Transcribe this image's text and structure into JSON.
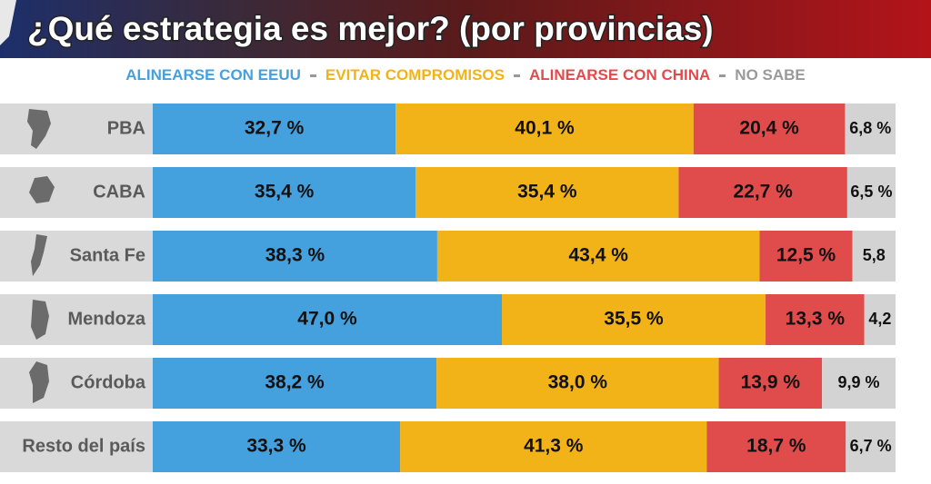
{
  "chart_data": {
    "type": "bar",
    "orientation": "horizontal",
    "stacked": true,
    "title": "¿Qué estrategia es mejor? (por provincias)",
    "categories": [
      "PBA",
      "CABA",
      "Santa Fe",
      "Mendoza",
      "Córdoba",
      "Resto del país"
    ],
    "xlim": [
      0,
      100
    ],
    "series": [
      {
        "name": "ALINEARSE CON EEUU",
        "color": "#45a0de",
        "values": [
          32.7,
          35.4,
          38.3,
          47.0,
          38.2,
          33.3
        ],
        "value_labels": [
          "32,7 %",
          "35,4 %",
          "38,3 %",
          "47,0 %",
          "38,2 %",
          "33,3 %"
        ]
      },
      {
        "name": "EVITAR COMPROMISOS",
        "color": "#f2b318",
        "values": [
          40.1,
          35.4,
          43.4,
          35.5,
          38.0,
          41.3
        ],
        "value_labels": [
          "40,1 %",
          "35,4 %",
          "43,4 %",
          "35,5 %",
          "38,0 %",
          "41,3 %"
        ]
      },
      {
        "name": "ALINEARSE CON CHINA",
        "color": "#e04c4c",
        "values": [
          20.4,
          22.7,
          12.5,
          13.3,
          13.9,
          18.7
        ],
        "value_labels": [
          "20,4 %",
          "22,7 %",
          "12,5 %",
          "13,3 %",
          "13,9 %",
          "18,7 %"
        ]
      },
      {
        "name": "NO SABE",
        "color": "#d3d3d3",
        "values": [
          6.8,
          6.5,
          5.8,
          4.2,
          9.9,
          6.7
        ],
        "value_labels": [
          "6,8 %",
          "6,5 %",
          "5,8",
          "4,2",
          "9,9 %",
          "6,7 %"
        ]
      }
    ]
  }
}
